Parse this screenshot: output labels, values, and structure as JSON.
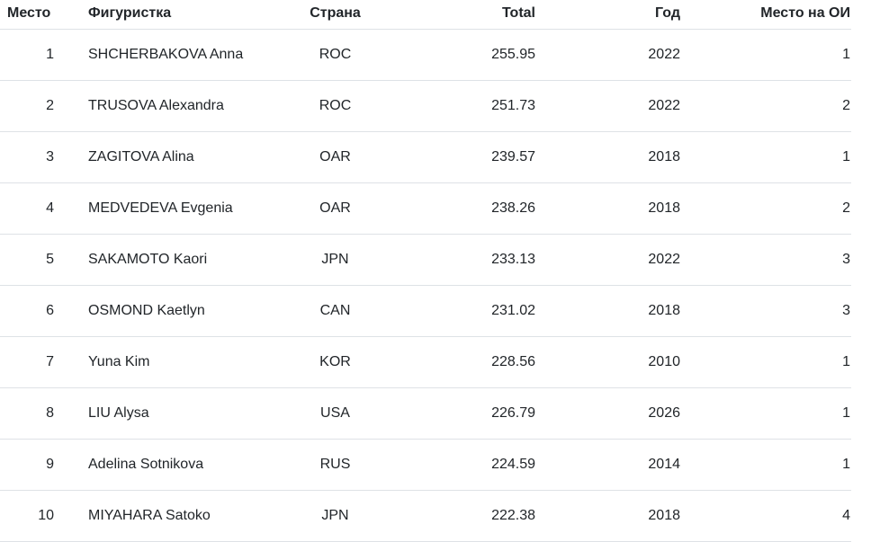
{
  "chart_data": {
    "type": "table",
    "columns": [
      "Место",
      "Фигуристка",
      "Страна",
      "Total",
      "Год",
      "Место на ОИ"
    ],
    "rows": [
      [
        "1",
        "SHCHERBAKOVA Anna",
        "ROC",
        "255.95",
        "2022",
        "1"
      ],
      [
        "2",
        "TRUSOVA Alexandra",
        "ROC",
        "251.73",
        "2022",
        "2"
      ],
      [
        "3",
        "ZAGITOVA Alina",
        "OAR",
        "239.57",
        "2018",
        "1"
      ],
      [
        "4",
        "MEDVEDEVA Evgenia",
        "OAR",
        "238.26",
        "2018",
        "2"
      ],
      [
        "5",
        "SAKAMOTO Kaori",
        "JPN",
        "233.13",
        "2022",
        "3"
      ],
      [
        "6",
        "OSMOND Kaetlyn",
        "CAN",
        "231.02",
        "2018",
        "3"
      ],
      [
        "7",
        "Yuna Kim",
        "KOR",
        "228.56",
        "2010",
        "1"
      ],
      [
        "8",
        "LIU Alysa",
        "USA",
        "226.79",
        "2026",
        "1"
      ],
      [
        "9",
        "Adelina Sotnikova",
        "RUS",
        "224.59",
        "2014",
        "1"
      ],
      [
        "10",
        "MIYAHARA Satoko",
        "JPN",
        "222.38",
        "2018",
        "4"
      ]
    ]
  },
  "colors": {
    "text": "#212529",
    "border": "#dee2e6",
    "background": "#ffffff"
  }
}
